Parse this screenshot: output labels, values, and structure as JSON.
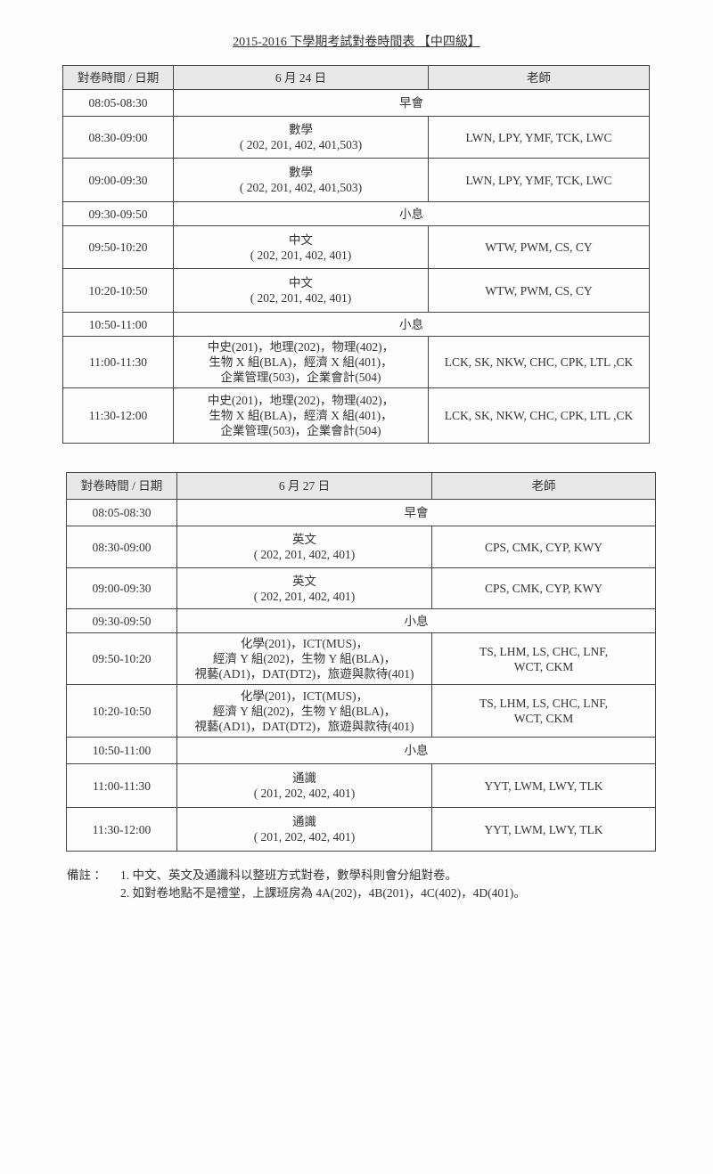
{
  "title": "2015-2016 下學期考試對卷時間表 【中四級】",
  "tables": [
    {
      "headers": [
        "對卷時間 / 日期",
        "6 月 24 日",
        "老師"
      ],
      "rows": [
        {
          "time": "08:05-08:30",
          "subject": "早會",
          "span": true
        },
        {
          "time": "08:30-09:00",
          "subject": "數學\n( 202, 201, 402, 401,503)",
          "teachers": "LWN, LPY, YMF, TCK, LWC"
        },
        {
          "time": "09:00-09:30",
          "subject": "數學\n( 202, 201, 402, 401,503)",
          "teachers": "LWN, LPY, YMF, TCK, LWC"
        },
        {
          "time": "09:30-09:50",
          "subject": "小息",
          "span": true
        },
        {
          "time": "09:50-10:20",
          "subject": "中文\n( 202, 201, 402, 401)",
          "teachers": "WTW, PWM, CS, CY"
        },
        {
          "time": "10:20-10:50",
          "subject": "中文\n( 202, 201, 402, 401)",
          "teachers": "WTW, PWM, CS, CY"
        },
        {
          "time": "10:50-11:00",
          "subject": "小息",
          "span": true
        },
        {
          "time": "11:00-11:30",
          "subject": "中史(201)，地理(202)，物理(402)，\n生物 X 組(BLA)，經濟 X 組(401)，\n企業管理(503)，企業會計(504)",
          "teachers": "LCK, SK, NKW, CHC, CPK, LTL ,CK"
        },
        {
          "time": "11:30-12:00",
          "subject": "中史(201)，地理(202)，物理(402)，\n生物 X 組(BLA)，經濟 X 組(401)，\n企業管理(503)，企業會計(504)",
          "teachers": "LCK, SK, NKW, CHC, CPK, LTL ,CK"
        }
      ]
    },
    {
      "headers": [
        "對卷時間 / 日期",
        "6 月 27 日",
        "老師"
      ],
      "rows": [
        {
          "time": "08:05-08:30",
          "subject": "早會",
          "span": true
        },
        {
          "time": "08:30-09:00",
          "subject": "英文\n( 202, 201, 402, 401)",
          "teachers": "CPS, CMK, CYP, KWY"
        },
        {
          "time": "09:00-09:30",
          "subject": "英文\n( 202, 201, 402, 401)",
          "teachers": "CPS, CMK, CYP, KWY"
        },
        {
          "time": "09:30-09:50",
          "subject": "小息",
          "span": true
        },
        {
          "time": "09:50-10:20",
          "subject": "化學(201)，ICT(MUS)，\n經濟 Y 組(202)，生物 Y 組(BLA)，\n視藝(AD1)，DAT(DT2)，旅遊與款待(401)",
          "teachers": "TS, LHM, LS, CHC, LNF,\nWCT, CKM"
        },
        {
          "time": "10:20-10:50",
          "subject": "化學(201)，ICT(MUS)，\n經濟 Y 組(202)，生物 Y 組(BLA)，\n視藝(AD1)，DAT(DT2)，旅遊與款待(401)",
          "teachers": "TS, LHM, LS, CHC, LNF,\nWCT, CKM"
        },
        {
          "time": "10:50-11:00",
          "subject": "小息",
          "span": true
        },
        {
          "time": "11:00-11:30",
          "subject": "通識\n( 201, 202, 402, 401)",
          "teachers": "YYT, LWM, LWY, TLK"
        },
        {
          "time": "11:30-12:00",
          "subject": "通識\n( 201, 202, 402, 401)",
          "teachers": "YYT, LWM, LWY, TLK"
        }
      ]
    }
  ],
  "notes": {
    "label": "備註 ：",
    "items": [
      "1. 中文、英文及通識科以整班方式對卷，數學科則會分組對卷。",
      "2. 如對卷地點不是禮堂，上課班房為 4A(202)，4B(201)，4C(402)，4D(401)。"
    ]
  }
}
